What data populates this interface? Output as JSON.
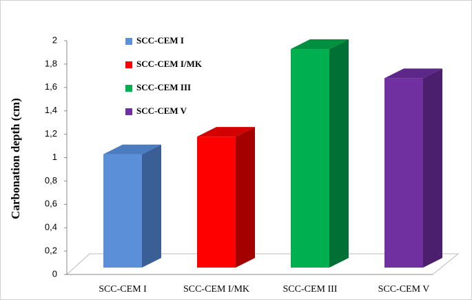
{
  "chart_data": {
    "type": "bar3d",
    "y_label": "Carbonation depth (cm)",
    "categories": [
      "SCC-CEM I",
      "SCC-CEM I/MK",
      "SCC-CEM III",
      "SCC-CEM V"
    ],
    "values": [
      0.97,
      1.12,
      1.87,
      1.62
    ],
    "colors": [
      "#5b8fd8",
      "#ff0000",
      "#00b050",
      "#7030a0"
    ],
    "side_colors": [
      "#3a5f96",
      "#a50000",
      "#007034",
      "#4b1f6e"
    ],
    "top_colors": [
      "#4b7cc0",
      "#d40000",
      "#00903f",
      "#5d278a"
    ],
    "legend": [
      "SCC-CEM I",
      "SCC-CEM I/MK",
      "SCC-CEM III",
      "SCC-CEM V"
    ],
    "ylim": [
      0,
      2
    ],
    "yticks": [
      0,
      {
        "value": 0.2,
        "label": "0,2"
      },
      {
        "value": 0.4,
        "label": "0,4"
      },
      {
        "value": 0.6,
        "label": "0,6"
      },
      {
        "value": 0.8,
        "label": "0,8"
      },
      1,
      {
        "value": 1.2,
        "label": "1,2"
      },
      {
        "value": 1.4,
        "label": "1,4"
      },
      {
        "value": 1.6,
        "label": "1,6"
      },
      {
        "value": 1.8,
        "label": "1,8"
      },
      2
    ]
  }
}
